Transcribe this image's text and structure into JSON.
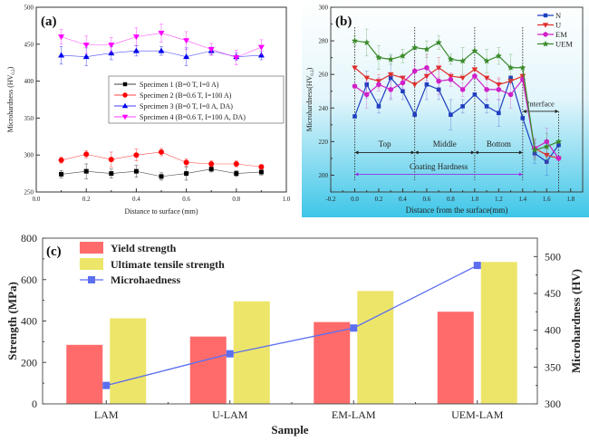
{
  "chart_data": [
    {
      "panel": "a",
      "type": "line",
      "panel_label": "(a)",
      "title": "",
      "xlabel": "Distance to surface (mm)",
      "ylabel": "Microhardness (HV0.2)",
      "ylabel_main": "Microhardness (HV",
      "ylabel_sub": "0.2",
      "xlim": [
        0.0,
        1.0
      ],
      "ylim": [
        250,
        500
      ],
      "xticks": [
        "0.0",
        "0.2",
        "0.4",
        "0.6",
        "0.8",
        "1.0"
      ],
      "yticks": [
        "250",
        "300",
        "350",
        "400",
        "450",
        "500"
      ],
      "legend_position": "center-right",
      "x": [
        0.1,
        0.2,
        0.3,
        0.4,
        0.5,
        0.6,
        0.7,
        0.8,
        0.9
      ],
      "series": [
        {
          "name": "Specimen 1 (B=0 T, I=0 A)",
          "color": "#000000",
          "marker": "square",
          "values": [
            274,
            278,
            275,
            278,
            271,
            275,
            281,
            275,
            277
          ],
          "errors": [
            5,
            10,
            6,
            8,
            5,
            9,
            4,
            4,
            4
          ]
        },
        {
          "name": "Specimen 2 (B=0.6 T, I=100 A)",
          "color": "#ff0000",
          "marker": "circle",
          "values": [
            293,
            301,
            294,
            300,
            304,
            290,
            288,
            288,
            284
          ],
          "errors": [
            4,
            5,
            10,
            8,
            5,
            5,
            4,
            4,
            3
          ]
        },
        {
          "name": "Specimen 3 (B=0 T, I=0 A, DA)",
          "color": "#0000ee",
          "marker": "triangle-up",
          "values": [
            435,
            433,
            438,
            441,
            441,
            433,
            441,
            433,
            435
          ],
          "errors": [
            12,
            12,
            9,
            7,
            6,
            12,
            5,
            5,
            6
          ]
        },
        {
          "name": "Specimen 4 (B=0.6 T, I=100 A, DA)",
          "color": "#ff00ff",
          "marker": "triangle-down",
          "values": [
            460,
            449,
            449,
            460,
            465,
            455,
            443,
            432,
            446
          ],
          "errors": [
            10,
            12,
            10,
            12,
            12,
            12,
            8,
            10,
            10
          ]
        }
      ]
    },
    {
      "panel": "b",
      "type": "line",
      "panel_label": "(b)",
      "title": "",
      "xlabel": "Distance from the surface(mm)",
      "ylabel": "Microhardness(HV0.2)",
      "ylabel_main": "Microhardness(HV",
      "ylabel_sub": "0.2",
      "xlim": [
        -0.2,
        1.9
      ],
      "ylim": [
        190,
        300
      ],
      "xticks": [
        "-0.2",
        "0.0",
        "0.2",
        "0.4",
        "0.6",
        "0.8",
        "1.0",
        "1.2",
        "1.4",
        "1.6",
        "1.8"
      ],
      "yticks": [
        "200",
        "220",
        "240",
        "260",
        "280",
        "300"
      ],
      "legend_position": "top-right",
      "x": [
        0.0,
        0.1,
        0.2,
        0.3,
        0.4,
        0.5,
        0.6,
        0.7,
        0.8,
        0.9,
        1.0,
        1.1,
        1.2,
        1.3,
        1.4,
        1.5,
        1.6,
        1.7
      ],
      "series": [
        {
          "name": "N",
          "color": "#1f3fbf",
          "marker": "square",
          "values": [
            235,
            254,
            241,
            258,
            250,
            236,
            254,
            251,
            236,
            241,
            248,
            241,
            237,
            258,
            234,
            213,
            208,
            218
          ],
          "errors": [
            0,
            8,
            4,
            13,
            5,
            0,
            9,
            6,
            9,
            4,
            0,
            4,
            8,
            0,
            0,
            6,
            8,
            0
          ]
        },
        {
          "name": "U",
          "color": "#e0302a",
          "marker": "triangle-down",
          "values": [
            264,
            258,
            256,
            260,
            258,
            254,
            259,
            264,
            259,
            258,
            263,
            258,
            254,
            256,
            259,
            216,
            212,
            210
          ],
          "errors": [
            0,
            0,
            4,
            0,
            0,
            0,
            0,
            6,
            0,
            0,
            0,
            0,
            4,
            0,
            0,
            5,
            5,
            0
          ]
        },
        {
          "name": "EM",
          "color": "#d020c8",
          "marker": "circle",
          "values": [
            253,
            248,
            254,
            251,
            255,
            262,
            264,
            256,
            257,
            251,
            259,
            251,
            251,
            248,
            257,
            216,
            220,
            210
          ],
          "errors": [
            0,
            8,
            4,
            5,
            4,
            6,
            8,
            8,
            4,
            4,
            0,
            6,
            6,
            8,
            0,
            6,
            8,
            0
          ]
        },
        {
          "name": "UEM",
          "color": "#3a8a2a",
          "marker": "star",
          "values": [
            280,
            279,
            270,
            269,
            271,
            276,
            275,
            279,
            269,
            268,
            274,
            268,
            271,
            264,
            264,
            215,
            217,
            220
          ],
          "errors": [
            3,
            8,
            7,
            3,
            4,
            0,
            5,
            4,
            3,
            8,
            0,
            7,
            5,
            8,
            0,
            6,
            8,
            0
          ]
        }
      ],
      "annotations": {
        "region_lines_x": [
          0.0,
          0.5,
          1.0,
          1.4,
          1.7
        ],
        "top": "Top",
        "middle": "Middle",
        "bottom": "Bottom",
        "coating": "Coating Hardness",
        "interface": "Interface"
      }
    },
    {
      "panel": "c",
      "type": "bar",
      "panel_label": "(c)",
      "title": "",
      "xlabel": "Sample",
      "ylabel": "Strength (MPa)",
      "ylabel_right": "Microhardness (HV)",
      "categories": [
        "LAM",
        "U-LAM",
        "EM-LAM",
        "UEM-LAM"
      ],
      "ylim": [
        0,
        800
      ],
      "ylim_right": [
        300,
        525
      ],
      "yticks": [
        "0",
        "200",
        "400",
        "600",
        "800"
      ],
      "yticks_right": [
        "300",
        "350",
        "400",
        "450",
        "500"
      ],
      "legend_position": "top-left",
      "series": [
        {
          "name": "Yield strength",
          "type": "bar",
          "color": "#ff6b6b",
          "values": [
            285,
            325,
            395,
            445
          ]
        },
        {
          "name": "Ultimate tensile strength",
          "type": "bar",
          "color": "#ede56a",
          "values": [
            413,
            495,
            545,
            685
          ]
        },
        {
          "name": "Microhaedness",
          "type": "line",
          "axis": "right",
          "color": "#5b6ef0",
          "values": [
            325,
            368,
            403,
            488
          ]
        }
      ]
    }
  ]
}
